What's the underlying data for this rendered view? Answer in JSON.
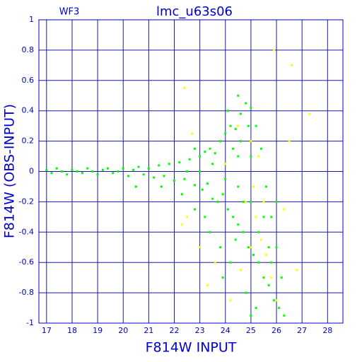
{
  "chart_data": {
    "type": "scatter",
    "title": "lmc_u63s06",
    "annotation": "WF3",
    "x_label": "F814W INPUT",
    "y_label": "F814W (OBS-INPUT)",
    "xlim": [
      16.7,
      28.6
    ],
    "ylim": [
      -1,
      1
    ],
    "xticks": [
      17,
      18,
      19,
      20,
      21,
      22,
      23,
      24,
      25,
      26,
      27,
      28
    ],
    "yticks": [
      -1,
      -0.8,
      -0.6,
      -0.4,
      -0.2,
      0,
      0.2,
      0.4,
      0.6,
      0.8,
      1
    ],
    "grid": true,
    "axis_color": "#0000cc",
    "grid_color": "#1a1aa6",
    "series": [
      {
        "color": "#00ff00",
        "x": [
          17.0,
          17.2,
          17.4,
          17.6,
          17.8,
          18.0,
          18.2,
          18.4,
          18.6,
          18.8,
          19.0,
          19.2,
          19.4,
          19.6,
          19.8,
          20.0,
          20.2,
          20.4,
          20.6,
          20.8,
          21.0,
          21.2,
          21.4,
          21.6,
          21.8,
          22.0,
          22.2,
          22.4,
          22.6,
          22.8,
          23.0,
          23.1,
          23.2,
          23.3,
          23.4,
          23.5,
          23.6,
          23.7,
          23.8,
          23.9,
          24.0,
          24.1,
          24.2,
          24.3,
          24.4,
          24.5,
          24.6,
          24.7,
          24.8,
          24.9,
          25.0,
          25.1,
          25.2,
          25.3,
          25.4,
          25.5,
          25.6,
          25.7,
          25.8,
          25.9,
          26.0,
          26.1,
          26.2,
          26.3,
          22.5,
          23,
          23.5,
          24,
          24.5,
          25,
          24,
          24.5,
          25,
          25.5,
          23.2,
          23.8,
          24.2,
          24.8,
          25.2,
          22.8,
          22.3,
          21.5,
          24.9,
          24.6,
          24.3,
          24.7,
          25.3,
          25.7,
          26.0,
          25.8,
          23.4,
          24.1,
          24.5,
          22.8,
          20.5,
          23.9,
          25.0,
          24.4
        ],
        "values": [
          0.01,
          -0.01,
          0.02,
          0.0,
          -0.02,
          0.01,
          0.0,
          -0.01,
          0.02,
          0.0,
          -0.02,
          0.01,
          0.02,
          -0.01,
          0.0,
          0.02,
          -0.03,
          0.01,
          0.03,
          -0.02,
          0.02,
          -0.04,
          0.04,
          -0.03,
          0.05,
          -0.06,
          0.06,
          -0.05,
          0.08,
          -0.09,
          0.1,
          -0.12,
          0.13,
          -0.08,
          0.15,
          -0.18,
          0.12,
          -0.2,
          0.2,
          -0.15,
          0.25,
          -0.25,
          0.3,
          -0.3,
          0.28,
          -0.35,
          0.38,
          -0.4,
          0.45,
          -0.5,
          0.42,
          -0.55,
          0.3,
          -0.6,
          0.15,
          -0.7,
          -0.1,
          -0.75,
          -0.3,
          -0.85,
          -0.5,
          -0.9,
          -0.7,
          -0.95,
          0.0,
          0.0,
          0.05,
          0.05,
          0.1,
          0.1,
          -0.05,
          -0.1,
          -0.2,
          -0.3,
          -0.3,
          -0.5,
          -0.6,
          -0.8,
          -0.9,
          -0.25,
          -0.15,
          -0.1,
          0.3,
          0.2,
          0.15,
          -0.2,
          -0.4,
          -0.5,
          -0.2,
          -0.6,
          -0.4,
          0.4,
          0.5,
          0.15,
          -0.1,
          -0.7,
          -0.95,
          -0.45
        ]
      },
      {
        "color": "#ffff00",
        "x": [
          22.4,
          22.7,
          22.5,
          23.0,
          23.3,
          24.0,
          24.5,
          24.8,
          25.0,
          25.1,
          25.2,
          25.3,
          25.4,
          25.5,
          25.6,
          25.8,
          26.0,
          26.5,
          26.8,
          26.6,
          25.9,
          27.3,
          24.2,
          23.6,
          22.3,
          26.3,
          25.0,
          24.6
        ],
        "values": [
          0.55,
          0.25,
          -0.3,
          -0.5,
          -0.75,
          0.05,
          0.3,
          -0.2,
          0.2,
          -0.1,
          -0.3,
          0.1,
          -0.45,
          -0.2,
          -0.55,
          -0.7,
          -0.85,
          0.2,
          -0.65,
          0.7,
          0.8,
          0.38,
          -0.85,
          -0.6,
          -0.35,
          -0.25,
          -0.5,
          -0.65
        ]
      }
    ]
  }
}
